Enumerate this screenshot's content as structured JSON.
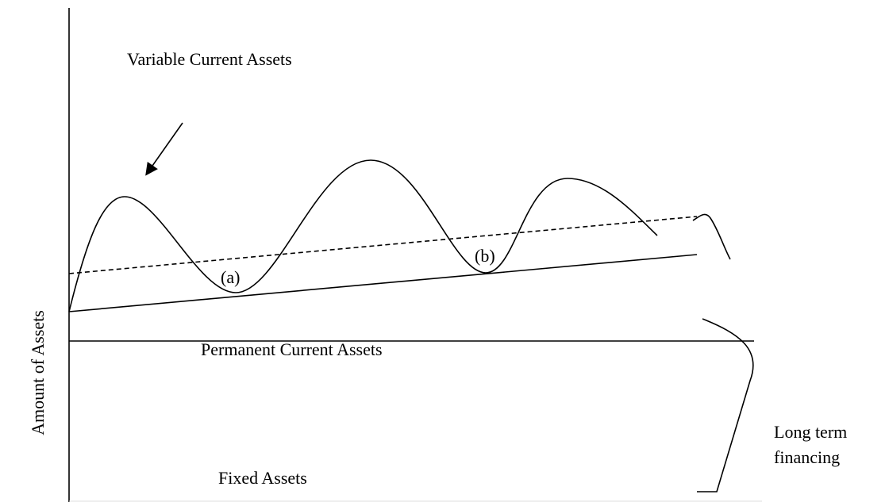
{
  "labels": {
    "variable": "Variable Current Assets",
    "a": "(a)",
    "b": "(b)",
    "y_axis": "Amount of Assets",
    "permanent": "Permanent Current Assets",
    "fixed": "Fixed Assets",
    "financing": [
      "Long term",
      "financing"
    ]
  }
}
